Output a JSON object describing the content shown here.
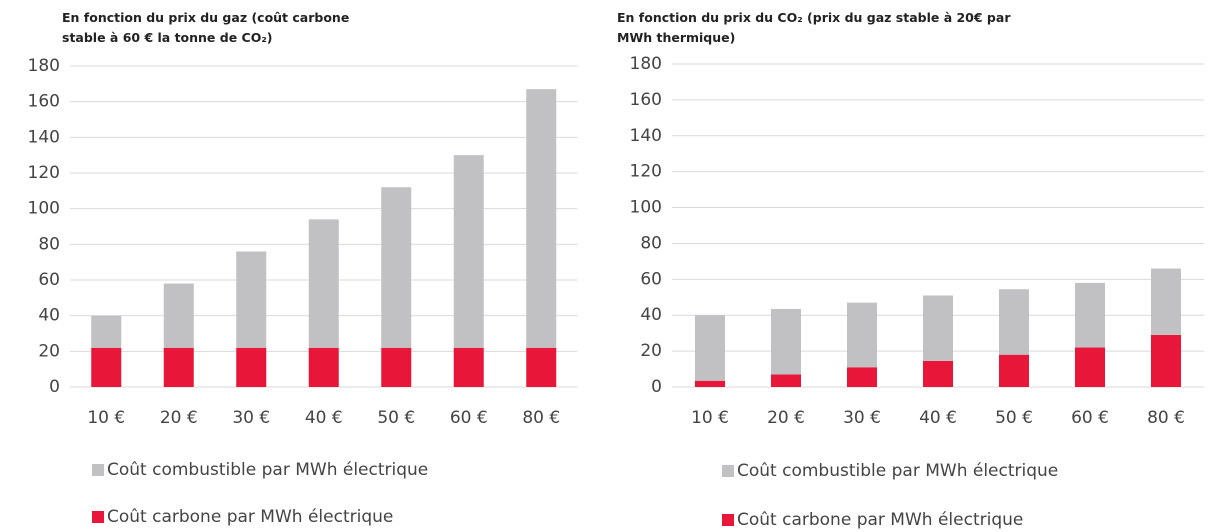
{
  "chart_data": [
    {
      "type": "bar",
      "stacked": true,
      "title": "En fonction du prix du gaz (coût carbone stable à 60 € la tonne de CO₂)",
      "categories": [
        "10 €",
        "20 €",
        "30 €",
        "40 €",
        "50 €",
        "60 €",
        "80 €"
      ],
      "series": [
        {
          "name": "Coût combustible par MWh électrique",
          "color": "#c1c1c3",
          "values": [
            18,
            36,
            54,
            72,
            90,
            108,
            145
          ]
        },
        {
          "name": "Coût carbone par MWh électrique",
          "color": "#e8173a",
          "values": [
            22,
            22,
            22,
            22,
            22,
            22,
            22
          ]
        }
      ],
      "ylim": [
        0,
        180
      ],
      "yticks": [
        0,
        20,
        40,
        60,
        80,
        100,
        120,
        140,
        160,
        180
      ],
      "grid": true,
      "legend": "bottom"
    },
    {
      "type": "bar",
      "stacked": true,
      "title": "En fonction du prix du CO₂ (prix du gaz stable à 20€ par MWh thermique)",
      "categories": [
        "10 €",
        "20 €",
        "30 €",
        "40 €",
        "50 €",
        "60 €",
        "80 €"
      ],
      "series": [
        {
          "name": "Coût combustible par MWh électrique",
          "color": "#c1c1c3",
          "values": [
            36.5,
            36.5,
            36,
            36.5,
            36.5,
            36,
            37
          ]
        },
        {
          "name": "Coût carbone par MWh électrique",
          "color": "#e8173a",
          "values": [
            3.5,
            7,
            11,
            14.5,
            18,
            22,
            29
          ]
        }
      ],
      "ylim": [
        0,
        180
      ],
      "yticks": [
        0,
        20,
        40,
        60,
        80,
        100,
        120,
        140,
        160,
        180
      ],
      "grid": true,
      "legend": "bottom"
    }
  ]
}
